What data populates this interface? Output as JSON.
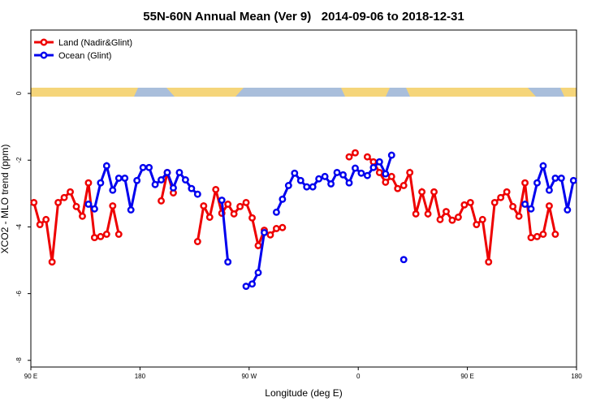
{
  "chart_data": {
    "type": "line",
    "title": "55N-60N Annual Mean (Ver 9)   2014-09-06 to 2018-12-31",
    "xlabel": "Longitude (deg E)",
    "ylabel": "XCO2 - MLO trend (ppm)",
    "legend": "top-left",
    "xlim": [
      90,
      540
    ],
    "xticks": [
      {
        "value": 90,
        "label": "90 E"
      },
      {
        "value": 180,
        "label": "180"
      },
      {
        "value": 270,
        "label": "90 W"
      },
      {
        "value": 360,
        "label": "0"
      },
      {
        "value": 450,
        "label": "90 E"
      },
      {
        "value": 540,
        "label": "180"
      }
    ],
    "ylim": [
      -8.2,
      1.9
    ],
    "yticks": [
      0,
      -2,
      -4,
      -6,
      -8
    ],
    "x": [
      92.5,
      97.5,
      102.5,
      107.5,
      112.5,
      117.5,
      122.5,
      127.5,
      132.5,
      137.5,
      142.5,
      147.5,
      152.5,
      157.5,
      162.5,
      167.5,
      172.5,
      177.5,
      182.5,
      187.5,
      192.5,
      197.5,
      202.5,
      207.5,
      212.5,
      217.5,
      222.5,
      227.5,
      232.5,
      237.5,
      242.5,
      247.5,
      252.5,
      257.5,
      262.5,
      267.5,
      272.5,
      277.5,
      282.5,
      287.5,
      292.5,
      297.5,
      302.5,
      307.5,
      312.5,
      317.5,
      322.5,
      327.5,
      332.5,
      337.5,
      342.5,
      347.5,
      352.5,
      357.5,
      362.5,
      367.5,
      372.5,
      377.5,
      382.5,
      387.5,
      392.5,
      397.5,
      402.5,
      407.5,
      412.5,
      417.5,
      422.5,
      427.5,
      432.5,
      437.5,
      442.5,
      447.5,
      452.5,
      457.5,
      462.5,
      467.5,
      472.5,
      477.5,
      482.5,
      487.5,
      492.5,
      497.5,
      502.5,
      507.5,
      512.5,
      517.5,
      522.5,
      527.5,
      532.5,
      537.5
    ],
    "series": [
      {
        "name": "Land (Nadir&Glint)",
        "color": "#ee0000",
        "values": [
          -3.27,
          -3.93,
          -3.78,
          -5.05,
          -3.27,
          -3.12,
          -2.95,
          -3.39,
          -3.68,
          -2.68,
          -4.32,
          -4.29,
          -4.22,
          -3.37,
          -4.22,
          null,
          null,
          null,
          null,
          null,
          null,
          -3.22,
          -2.37,
          -2.98,
          null,
          null,
          null,
          -4.44,
          -3.37,
          -3.71,
          -2.88,
          -3.59,
          -3.32,
          -3.61,
          -3.39,
          -3.27,
          -3.73,
          -4.56,
          -4.1,
          -4.24,
          -4.05,
          -4.02,
          null,
          null,
          null,
          null,
          null,
          null,
          null,
          null,
          null,
          null,
          -1.9,
          -1.78,
          null,
          -1.9,
          -2.05,
          -2.37,
          -2.66,
          -2.49,
          -2.85,
          -2.76,
          -2.37,
          -3.61,
          -2.95,
          -3.61,
          -2.95,
          -3.78,
          -3.54,
          -3.8,
          -3.71,
          -3.34,
          -3.27,
          -3.93,
          -3.78,
          -5.05,
          -3.27,
          -3.12,
          -2.95,
          -3.39,
          -3.68,
          -2.68,
          -4.32,
          -4.29,
          -4.22,
          -3.37,
          -4.22,
          null,
          null,
          null
        ]
      },
      {
        "name": "Ocean (Glint)",
        "color": "#0000ee",
        "values": [
          null,
          null,
          null,
          null,
          null,
          null,
          null,
          null,
          null,
          -3.32,
          -3.46,
          -2.68,
          -2.17,
          -2.9,
          -2.54,
          -2.54,
          -3.49,
          -2.61,
          -2.22,
          -2.22,
          -2.73,
          -2.59,
          -2.37,
          -2.83,
          -2.37,
          -2.59,
          -2.85,
          -3.02,
          null,
          null,
          null,
          -3.2,
          -5.05,
          null,
          null,
          -5.78,
          -5.71,
          -5.37,
          -4.17,
          null,
          -3.56,
          -3.17,
          -2.76,
          -2.39,
          -2.61,
          -2.8,
          -2.8,
          -2.56,
          -2.49,
          -2.71,
          -2.37,
          -2.44,
          -2.68,
          -2.24,
          -2.39,
          -2.46,
          -2.22,
          -2.05,
          -2.41,
          -1.85,
          null,
          -4.98,
          null,
          null,
          null,
          null,
          null,
          null,
          null,
          null,
          null,
          null,
          null,
          null,
          null,
          null,
          null,
          null,
          null,
          null,
          null,
          -3.32,
          -3.46,
          -2.68,
          -2.17,
          -2.9,
          -2.54,
          -2.54,
          -3.49,
          -2.61
        ]
      }
    ]
  }
}
